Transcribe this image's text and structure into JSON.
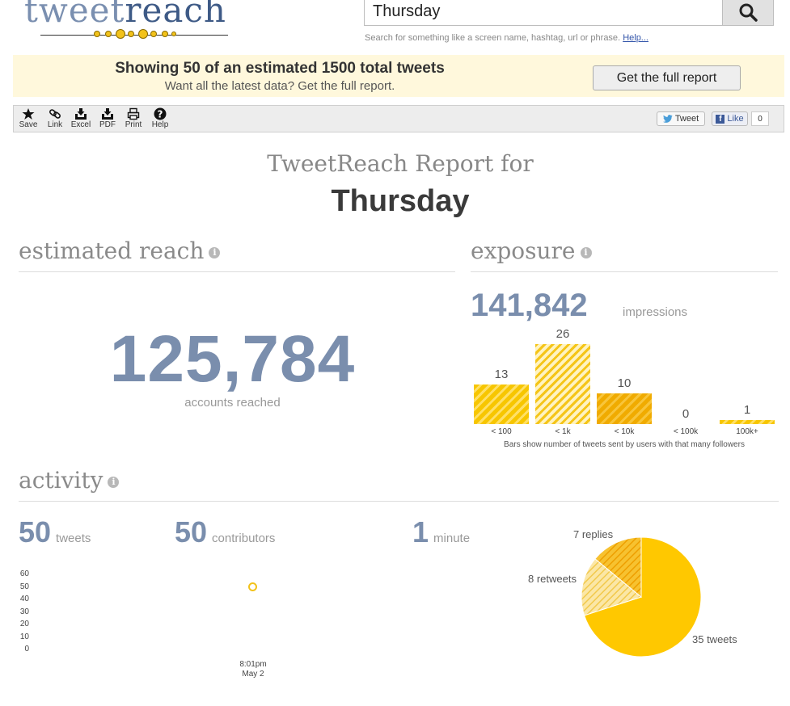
{
  "header": {
    "logo_part1": "tweet",
    "logo_part2": "reach",
    "search_value": "Thursday",
    "search_hint": "Search for something like a screen name, hashtag, url or phrase.",
    "help_link": "Help..."
  },
  "banner": {
    "title": "Showing 50 of an estimated 1500 total tweets",
    "subtitle": "Want all the latest data? Get the full report.",
    "button_label": "Get the full report"
  },
  "toolbar": {
    "items": [
      {
        "label": "Save",
        "icon": "star-icon"
      },
      {
        "label": "Link",
        "icon": "link-icon"
      },
      {
        "label": "Excel",
        "icon": "download-tray-icon"
      },
      {
        "label": "PDF",
        "icon": "download-tray-icon"
      },
      {
        "label": "Print",
        "icon": "printer-icon"
      },
      {
        "label": "Help",
        "icon": "question-icon"
      }
    ],
    "tweet_label": "Tweet",
    "like_label": "Like",
    "like_count": "0"
  },
  "report": {
    "title_prefix": "TweetReach Report for",
    "term": "Thursday"
  },
  "reach": {
    "heading": "estimated reach",
    "value": "125,784",
    "label": "accounts reached"
  },
  "exposure": {
    "heading": "exposure",
    "impressions": "141,842",
    "impressions_label": "impressions",
    "note": "Bars show number of tweets sent by users with that many followers",
    "chart_data": {
      "type": "bar",
      "categories": [
        "< 100",
        "< 1k",
        "< 10k",
        "< 100k",
        "100k+"
      ],
      "values": [
        13,
        26,
        10,
        0,
        1
      ]
    }
  },
  "activity": {
    "heading": "activity",
    "tweets": {
      "value": "50",
      "label": "tweets"
    },
    "contributors": {
      "value": "50",
      "label": "contributors"
    },
    "duration": {
      "value": "1",
      "label": "minute"
    },
    "timeline_chart": {
      "type": "scatter",
      "yticks": [
        "60",
        "50",
        "40",
        "30",
        "20",
        "10",
        "0"
      ],
      "xtick_time": "8:01pm",
      "xtick_date": "May 2",
      "points": [
        {
          "x": "8:01pm May 2",
          "y": 50
        }
      ],
      "ylim": [
        0,
        60
      ]
    },
    "pie_chart": {
      "type": "pie",
      "slices": [
        {
          "label": "35 tweets",
          "value": 35,
          "color": "#ffc800"
        },
        {
          "label": "8 retweets",
          "value": 8,
          "color": "#f8dc7a"
        },
        {
          "label": "7 replies",
          "value": 7,
          "color": "#f0ab00"
        }
      ]
    }
  },
  "colors": {
    "accent_number": "#7a8ead",
    "bar_yellow": "#f7c600",
    "banner_bg": "#fff8dc"
  }
}
